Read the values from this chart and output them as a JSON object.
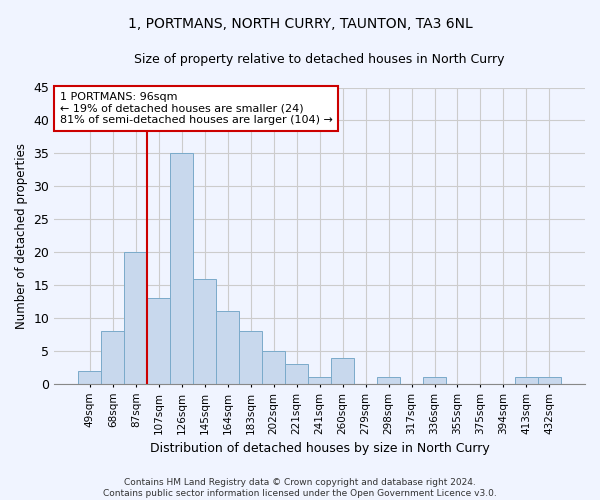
{
  "title": "1, PORTMANS, NORTH CURRY, TAUNTON, TA3 6NL",
  "subtitle": "Size of property relative to detached houses in North Curry",
  "xlabel": "Distribution of detached houses by size in North Curry",
  "ylabel": "Number of detached properties",
  "bar_color": "#c8d8ed",
  "bar_edge_color": "#7aaaca",
  "grid_color": "#cccccc",
  "background_color": "#f0f4ff",
  "categories": [
    "49sqm",
    "68sqm",
    "87sqm",
    "107sqm",
    "126sqm",
    "145sqm",
    "164sqm",
    "183sqm",
    "202sqm",
    "221sqm",
    "241sqm",
    "260sqm",
    "279sqm",
    "298sqm",
    "317sqm",
    "336sqm",
    "355sqm",
    "375sqm",
    "394sqm",
    "413sqm",
    "432sqm"
  ],
  "values": [
    2,
    8,
    20,
    13,
    35,
    16,
    11,
    8,
    5,
    3,
    1,
    4,
    0,
    1,
    0,
    1,
    0,
    0,
    0,
    1,
    1
  ],
  "ylim": [
    0,
    45
  ],
  "yticks": [
    0,
    5,
    10,
    15,
    20,
    25,
    30,
    35,
    40,
    45
  ],
  "red_line_x": 2.5,
  "annotation_line1": "1 PORTMANS: 96sqm",
  "annotation_line2": "← 19% of detached houses are smaller (24)",
  "annotation_line3": "81% of semi-detached houses are larger (104) →",
  "annotation_box_color": "#ffffff",
  "annotation_box_edge_color": "#cc0000",
  "footer_line1": "Contains HM Land Registry data © Crown copyright and database right 2024.",
  "footer_line2": "Contains public sector information licensed under the Open Government Licence v3.0.",
  "figsize": [
    6.0,
    5.0
  ],
  "dpi": 100
}
